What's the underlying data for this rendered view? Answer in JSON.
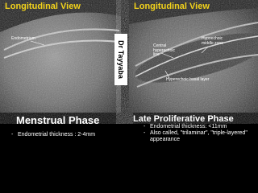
{
  "left": {
    "heading": "Longitudinal View",
    "labels": [
      "Endometrium"
    ],
    "title": "Menstrual Phase",
    "bullets": [
      "Endometrial thickness : 2-4mm"
    ]
  },
  "right": {
    "heading": "Longitudinal View",
    "labels": [
      "Central hyperechoic line",
      "Hypoechoic middle zone",
      "Hyperechoic basal layer"
    ],
    "title": "Late Proliferative Phase",
    "bullets": [
      "Endometrial thickness: <11mm",
      "Also called, \"trilaminar\", \"triple-layered\" appearance"
    ]
  },
  "watermark": "Dr Tayyaba"
}
